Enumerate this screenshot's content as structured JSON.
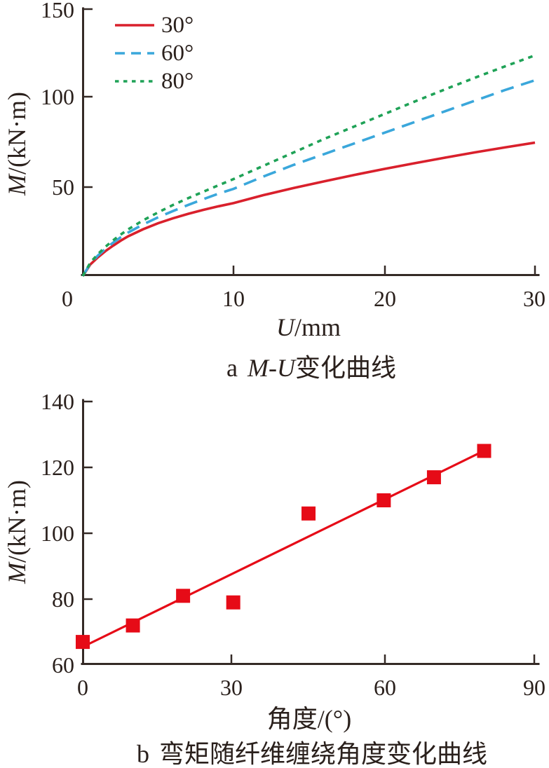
{
  "style": {
    "text_color": "#2a201c",
    "axis_color": "#352a26",
    "background": "#ffffff"
  },
  "chart_data": [
    {
      "type": "line",
      "panel_index": "a",
      "caption": "a M-U变化曲线",
      "caption_math": "M-U",
      "caption_rest": "变化曲线",
      "xlabel": "U/mm",
      "xlabel_var": "U",
      "xlabel_unit": "/mm",
      "ylabel": "M/(kN·m)",
      "ylabel_var": "M",
      "ylabel_unit": "/(kN·m)",
      "xlim": [
        0,
        30
      ],
      "ylim": [
        0,
        150
      ],
      "x_tick_labels": [
        "0",
        "10",
        "20",
        "30"
      ],
      "y_tick_labels": [
        "150",
        "100",
        "50"
      ],
      "grid": false,
      "legend_position": "top-left",
      "x": [
        0,
        0.5,
        1,
        1.5,
        2,
        2.5,
        3,
        4,
        5,
        6,
        7,
        8,
        9,
        10,
        12,
        14,
        16,
        18,
        20,
        22,
        24,
        26,
        28,
        30
      ],
      "series": [
        {
          "name": "30°",
          "color": "#d9202c",
          "line_style": "solid",
          "dash": null,
          "legend_dash": null,
          "values": [
            0,
            6.5,
            10.5,
            14,
            17,
            19.8,
            22.3,
            26.3,
            29.7,
            32.5,
            35,
            37.2,
            39.2,
            41,
            45.5,
            49.5,
            53.2,
            56.8,
            60.2,
            63.4,
            66.5,
            69.5,
            72.3,
            75
          ]
        },
        {
          "name": "60°",
          "color": "#3aa7db",
          "line_style": "dashed",
          "dash": "19 11",
          "legend_dash": "14 9",
          "values": [
            0,
            7,
            11.5,
            15.3,
            18.7,
            21.7,
            24.4,
            29,
            33,
            36.6,
            40,
            43.2,
            46.3,
            49,
            56,
            62.5,
            68.5,
            74.5,
            80.5,
            86.5,
            92.5,
            98.5,
            104.5,
            110
          ]
        },
        {
          "name": "80°",
          "color": "#1fa257",
          "line_style": "dotted",
          "dash": "6.5 7",
          "legend_dash": "5.5 6.5",
          "values": [
            0,
            7.5,
            12.3,
            16.4,
            20,
            23.2,
            26.2,
            31.3,
            35.8,
            40,
            43.8,
            47.4,
            51,
            54.5,
            62,
            69.5,
            77,
            84,
            91,
            98,
            104.8,
            111.4,
            117.8,
            124
          ]
        }
      ]
    },
    {
      "type": "scatter",
      "panel_index": "b",
      "caption": "b 弯矩随纤维缠绕角度变化曲线",
      "caption_rest": "弯矩随纤维缠绕角度变化曲线",
      "xlabel": "角度/(°)",
      "ylabel": "M/(kN·m)",
      "ylabel_var": "M",
      "ylabel_unit": "/(kN·m)",
      "xlim": [
        0,
        90
      ],
      "ylim": [
        60,
        140
      ],
      "x_tick_labels": [
        "0",
        "30",
        "60",
        "90"
      ],
      "y_tick_labels": [
        "140",
        "120",
        "100",
        "80",
        "60"
      ],
      "grid": false,
      "marker": "square",
      "marker_color": "#e60b17",
      "marker_size": 20,
      "points": [
        [
          0,
          67
        ],
        [
          10,
          72
        ],
        [
          20,
          81
        ],
        [
          30,
          79
        ],
        [
          45,
          106
        ],
        [
          60,
          110
        ],
        [
          70,
          117
        ],
        [
          80,
          125
        ]
      ],
      "fit_line": {
        "x1": 0,
        "y1": 65.5,
        "x2": 81,
        "y2": 125.8,
        "color": "#e60b17"
      }
    }
  ]
}
